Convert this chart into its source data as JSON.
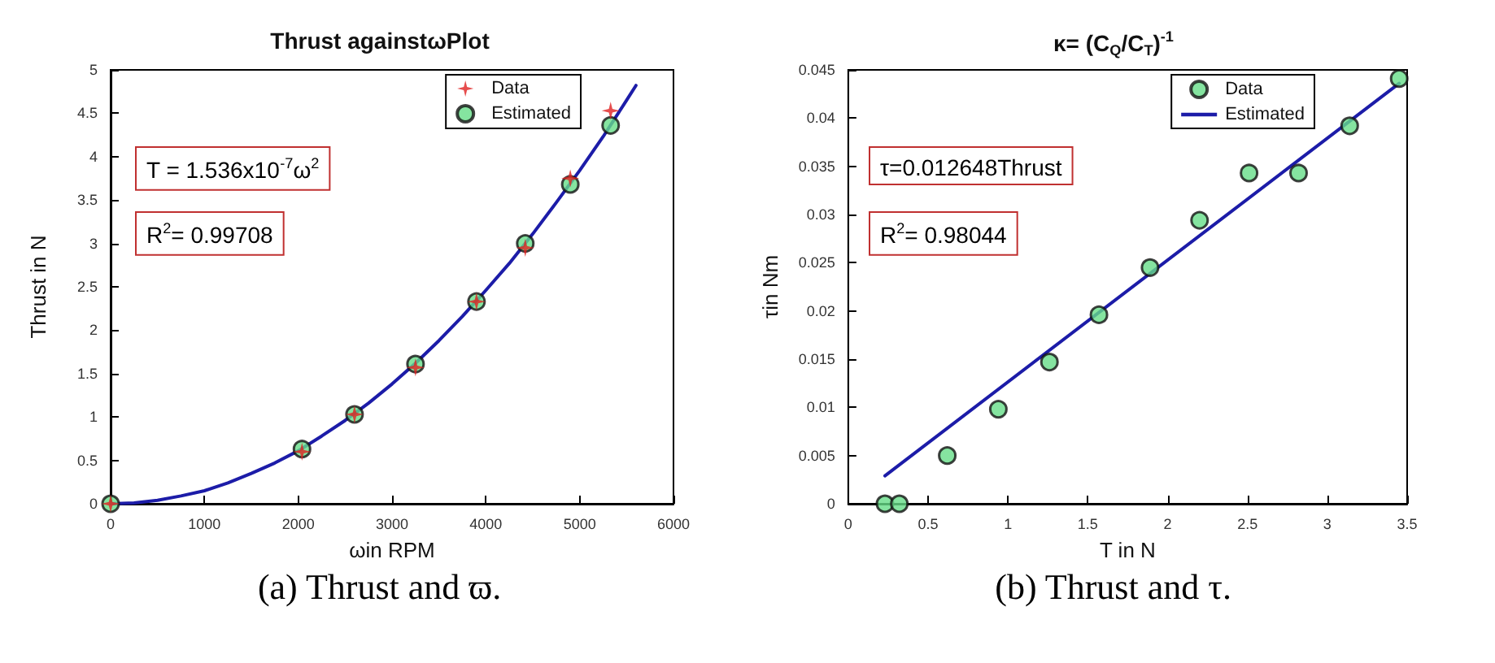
{
  "chart_data": [
    {
      "type": "scatter",
      "title": "Thrust againstωPlot",
      "xlabel": "ωin RPM",
      "ylabel": "Thrust in N",
      "xlim": [
        0,
        6000
      ],
      "xticks": [
        0,
        1000,
        2000,
        3000,
        4000,
        5000,
        6000
      ],
      "ylim": [
        0,
        5
      ],
      "yticks": [
        0,
        0.5,
        1,
        1.5,
        2,
        2.5,
        3,
        3.5,
        4,
        4.5,
        5
      ],
      "grid": false,
      "legend": "top right",
      "annotations": [
        "T = 1.536x10$^{-7}$ω$^{2}$",
        "R$^{2}$= 0.99708",
        "(a) Thrust and ϖ."
      ],
      "series": [
        {
          "type": "line",
          "color": "#1c1ca8",
          "marker": "none",
          "line_style": "solid",
          "x": [
            0,
            250,
            500,
            750,
            1000,
            1250,
            1500,
            1750,
            2000,
            2250,
            2500,
            2750,
            3000,
            3250,
            3500,
            3750,
            4000,
            4250,
            4500,
            4750,
            5000,
            5250,
            5500,
            5600
          ],
          "values": [
            0,
            0.01,
            0.04,
            0.09,
            0.15,
            0.24,
            0.35,
            0.47,
            0.61,
            0.78,
            0.96,
            1.16,
            1.38,
            1.62,
            1.88,
            2.16,
            2.46,
            2.77,
            3.11,
            3.47,
            3.84,
            4.23,
            4.65,
            4.82
          ]
        },
        {
          "name": "Data",
          "color": "#e02020",
          "marker": "star",
          "x": [
            0,
            2040,
            2600,
            3250,
            3900,
            4420,
            4900,
            5330
          ],
          "values": [
            0,
            0.6,
            1.03,
            1.57,
            2.33,
            2.95,
            3.75,
            4.53
          ]
        },
        {
          "name": "Estimated",
          "color": "#66dd88",
          "marker": "circle",
          "x": [
            0,
            2040,
            2600,
            3250,
            3900,
            4420,
            4900,
            5330
          ],
          "values": [
            0,
            0.63,
            1.03,
            1.61,
            2.33,
            3.0,
            3.68,
            4.36
          ]
        }
      ]
    },
    {
      "type": "scatter",
      "title": "κ= (C$_{Q}$/C$_{T}$)$^{-1}$",
      "xlabel": "T in N",
      "ylabel": "τin Nm",
      "xlim": [
        0,
        3.5
      ],
      "xticks": [
        0,
        0.5,
        1,
        1.5,
        2,
        2.5,
        3,
        3.5
      ],
      "ylim": [
        0,
        0.045
      ],
      "yticks": [
        0,
        0.005,
        0.01,
        0.015,
        0.02,
        0.025,
        0.03,
        0.035,
        0.04,
        0.045
      ],
      "grid": false,
      "legend": "top right",
      "annotations": [
        "τ=0.012648Thrust",
        "R$^{2}$= 0.98044",
        "(b) Thrust and τ."
      ],
      "series": [
        {
          "name": "Data",
          "color": "#66dd88",
          "marker": "circle",
          "x": [
            0.23,
            0.32,
            0.62,
            0.94,
            1.26,
            1.57,
            1.89,
            2.2,
            2.51,
            2.82,
            3.14,
            3.45
          ],
          "values": [
            0,
            0,
            0.005,
            0.0098,
            0.0147,
            0.0196,
            0.0245,
            0.0294,
            0.0343,
            0.0343,
            0.0392,
            0.0441
          ]
        },
        {
          "name": "Estimated",
          "type": "line",
          "color": "#1c1ca8",
          "marker": "none",
          "line_style": "solid",
          "x": [
            0.23,
            3.45
          ],
          "values": [
            0.0029,
            0.0436
          ]
        }
      ]
    }
  ]
}
